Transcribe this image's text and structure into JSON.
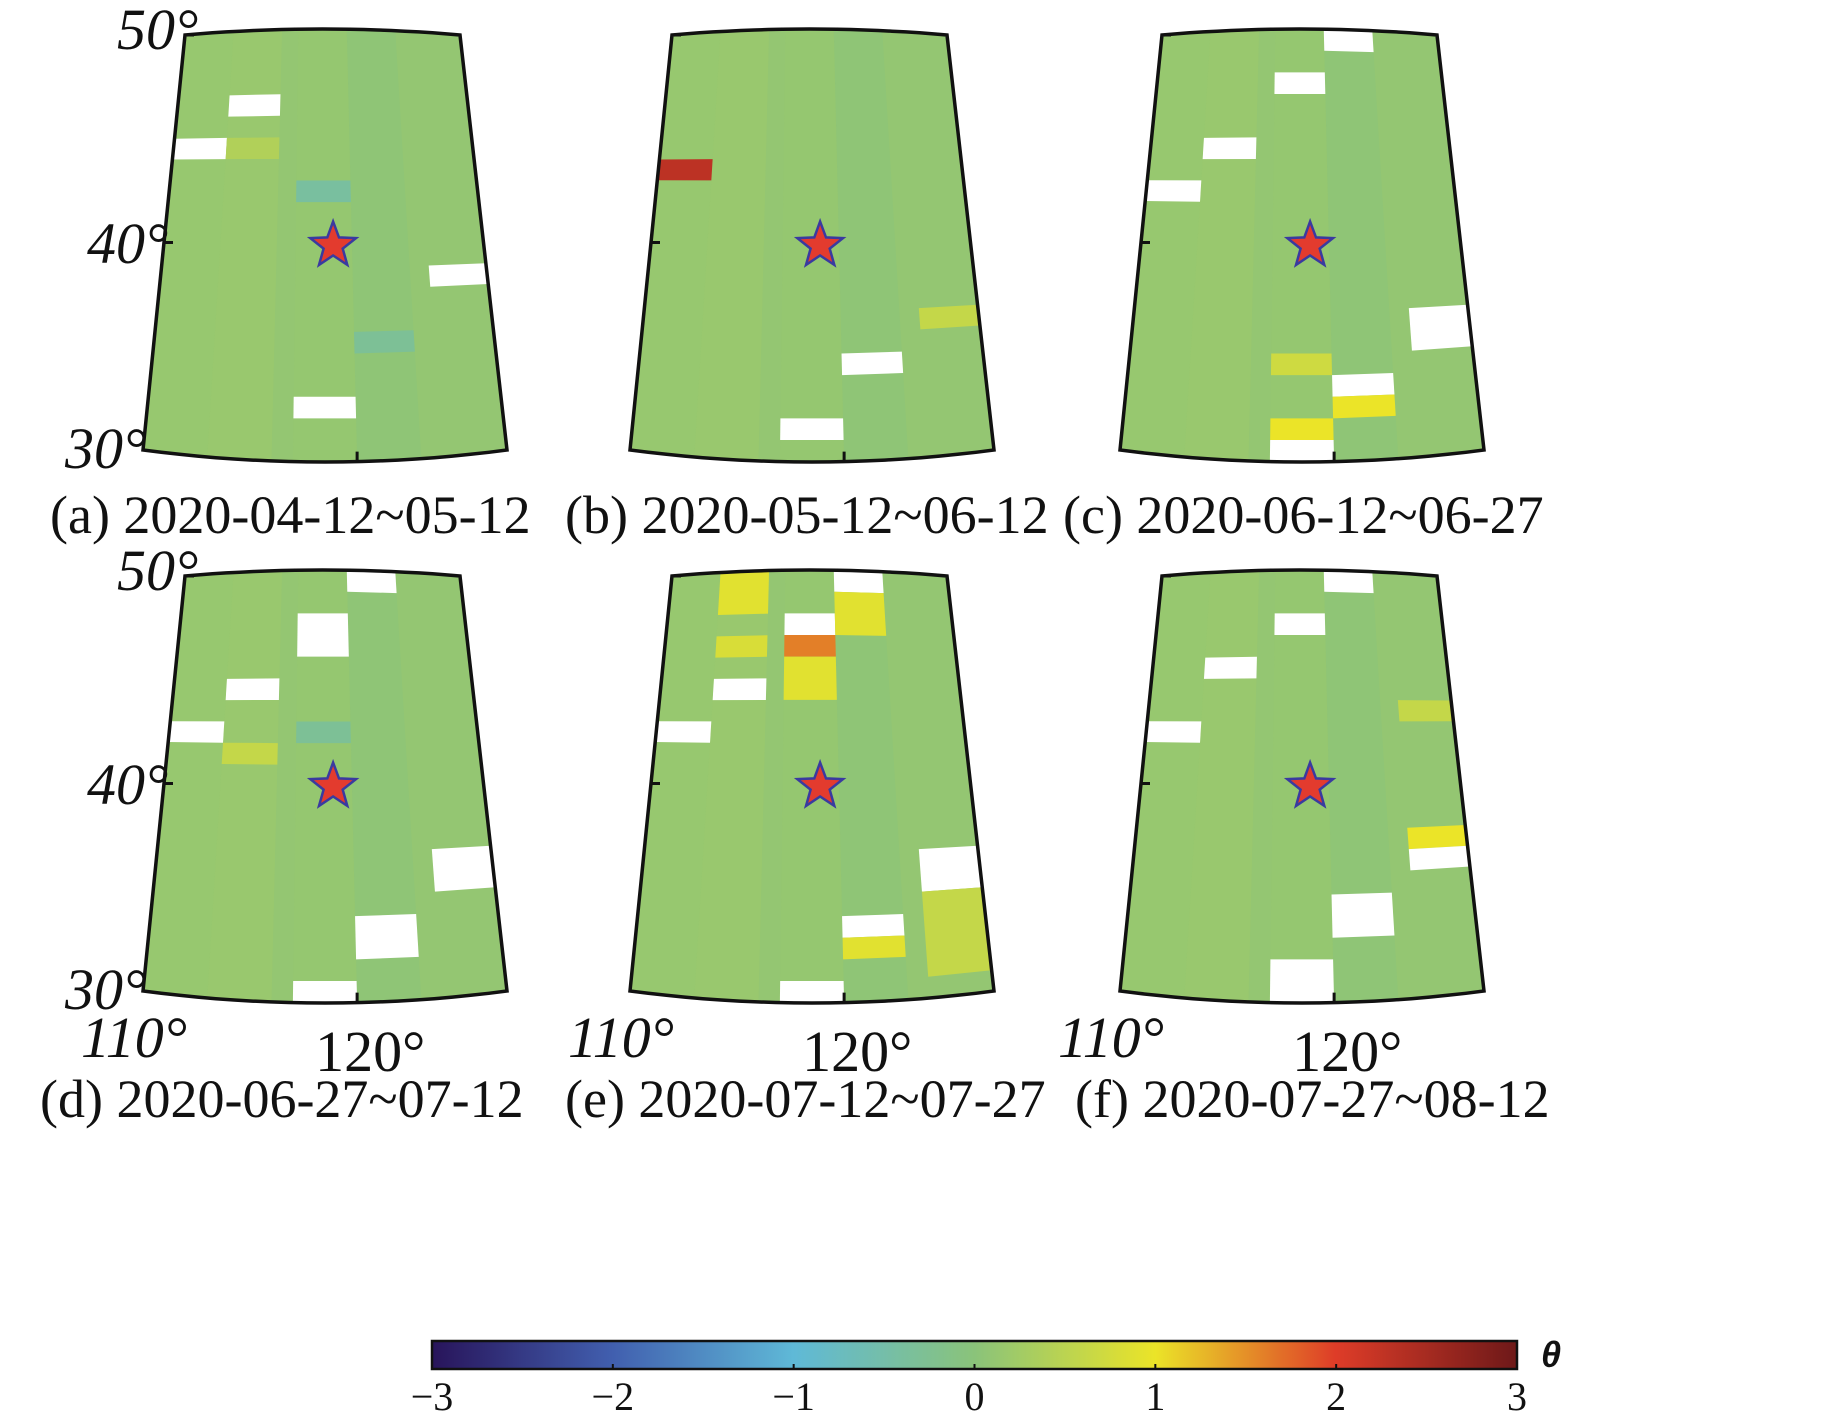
{
  "figure": {
    "panels": [
      {
        "id": "a",
        "caption": "(a) 2020-04-12~05-12"
      },
      {
        "id": "b",
        "caption": "(b) 2020-05-12~06-12"
      },
      {
        "id": "c",
        "caption": "(c) 2020-06-12~06-27"
      },
      {
        "id": "d",
        "caption": "(d) 2020-06-27~07-12"
      },
      {
        "id": "e",
        "caption": "(e) 2020-07-12~07-27"
      },
      {
        "id": "f",
        "caption": "(f) 2020-07-27~08-12"
      }
    ],
    "lat_ticks": [
      "50°",
      "40°",
      "30°"
    ],
    "lon_ticks": [
      "110°",
      "120°"
    ],
    "epicenter": {
      "lon": 119.0,
      "lat": 40.0,
      "marker": "red-star"
    },
    "colorbar": {
      "title": "θ",
      "ticks": [
        "−3",
        "−2",
        "−1",
        "0",
        "1",
        "2",
        "3"
      ],
      "range": [
        -3,
        3
      ]
    }
  },
  "chart_data": {
    "type": "heatmap",
    "variable": "θ",
    "lon_range": [
      110,
      127
    ],
    "lat_range": [
      30,
      50
    ],
    "value_range": [
      -3,
      3
    ],
    "default_value": 0.1,
    "missing": "white cells = no data",
    "panels": [
      {
        "id": "a",
        "cells": [
          {
            "lon": [
              113,
              116
            ],
            "lat": [
              46,
              47
            ],
            "v": null
          },
          {
            "lon": [
              110,
              113
            ],
            "lat": [
              44,
              45
            ],
            "v": null
          },
          {
            "lon": [
              124,
              127
            ],
            "lat": [
              38,
              39
            ],
            "v": null
          },
          {
            "lon": [
              117,
              120
            ],
            "lat": [
              32,
              33
            ],
            "v": null
          },
          {
            "lon": [
              117,
              120
            ],
            "lat": [
              42,
              43
            ],
            "v": -0.4
          },
          {
            "lon": [
              120,
              123
            ],
            "lat": [
              35,
              36
            ],
            "v": -0.3
          },
          {
            "lon": [
              113,
              116
            ],
            "lat": [
              44,
              45
            ],
            "v": 0.4
          }
        ]
      },
      {
        "id": "b",
        "cells": [
          {
            "lon": [
              110,
              113
            ],
            "lat": [
              43,
              44
            ],
            "v": 2.3
          },
          {
            "lon": [
              124,
              127
            ],
            "lat": [
              36,
              37
            ],
            "v": 0.6
          },
          {
            "lon": [
              120,
              123
            ],
            "lat": [
              34,
              35
            ],
            "v": null
          },
          {
            "lon": [
              117,
              120
            ],
            "lat": [
              31,
              32
            ],
            "v": null
          }
        ]
      },
      {
        "id": "c",
        "cells": [
          {
            "lon": [
              120,
              123
            ],
            "lat": [
              49,
              50
            ],
            "v": null
          },
          {
            "lon": [
              117,
              120
            ],
            "lat": [
              47,
              48
            ],
            "v": null
          },
          {
            "lon": [
              113,
              116
            ],
            "lat": [
              44,
              45
            ],
            "v": null
          },
          {
            "lon": [
              110,
              113
            ],
            "lat": [
              42,
              43
            ],
            "v": null
          },
          {
            "lon": [
              124,
              127
            ],
            "lat": [
              35,
              37
            ],
            "v": null
          },
          {
            "lon": [
              120,
              123
            ],
            "lat": [
              33,
              34
            ],
            "v": null
          },
          {
            "lon": [
              120,
              123
            ],
            "lat": [
              32,
              33
            ],
            "v": 1.0
          },
          {
            "lon": [
              117,
              120
            ],
            "lat": [
              31,
              32
            ],
            "v": 1.0
          },
          {
            "lon": [
              117,
              120
            ],
            "lat": [
              30,
              31
            ],
            "v": null
          },
          {
            "lon": [
              117,
              120
            ],
            "lat": [
              34,
              35
            ],
            "v": 0.7
          }
        ]
      },
      {
        "id": "d",
        "cells": [
          {
            "lon": [
              120,
              123
            ],
            "lat": [
              49,
              50
            ],
            "v": null
          },
          {
            "lon": [
              117,
              120
            ],
            "lat": [
              46,
              48
            ],
            "v": null
          },
          {
            "lon": [
              113,
              116
            ],
            "lat": [
              44,
              45
            ],
            "v": null
          },
          {
            "lon": [
              110,
              113
            ],
            "lat": [
              42,
              43
            ],
            "v": null
          },
          {
            "lon": [
              124,
              127
            ],
            "lat": [
              35,
              37
            ],
            "v": null
          },
          {
            "lon": [
              120,
              123
            ],
            "lat": [
              32,
              34
            ],
            "v": null
          },
          {
            "lon": [
              117,
              120
            ],
            "lat": [
              30,
              31
            ],
            "v": null
          },
          {
            "lon": [
              113,
              116
            ],
            "lat": [
              41,
              42
            ],
            "v": 0.6
          },
          {
            "lon": [
              117,
              120
            ],
            "lat": [
              42,
              43
            ],
            "v": -0.3
          }
        ]
      },
      {
        "id": "e",
        "cells": [
          {
            "lon": [
              120,
              123
            ],
            "lat": [
              49,
              50
            ],
            "v": null
          },
          {
            "lon": [
              117,
              120
            ],
            "lat": [
              47,
              48
            ],
            "v": null
          },
          {
            "lon": [
              117,
              120
            ],
            "lat": [
              46,
              47
            ],
            "v": 1.6
          },
          {
            "lon": [
              117,
              120
            ],
            "lat": [
              44,
              46
            ],
            "v": 0.9
          },
          {
            "lon": [
              113,
              116
            ],
            "lat": [
              48,
              50
            ],
            "v": 0.9
          },
          {
            "lon": [
              120,
              123
            ],
            "lat": [
              47,
              49
            ],
            "v": 0.9
          },
          {
            "lon": [
              113,
              116
            ],
            "lat": [
              46,
              47
            ],
            "v": 0.8
          },
          {
            "lon": [
              113,
              116
            ],
            "lat": [
              44,
              45
            ],
            "v": null
          },
          {
            "lon": [
              110,
              113
            ],
            "lat": [
              42,
              43
            ],
            "v": null
          },
          {
            "lon": [
              124,
              127
            ],
            "lat": [
              35,
              37
            ],
            "v": null
          },
          {
            "lon": [
              124,
              127
            ],
            "lat": [
              31,
              35
            ],
            "v": 0.6
          },
          {
            "lon": [
              120,
              123
            ],
            "lat": [
              33,
              34
            ],
            "v": null
          },
          {
            "lon": [
              120,
              123
            ],
            "lat": [
              32,
              33
            ],
            "v": 0.9
          },
          {
            "lon": [
              117,
              120
            ],
            "lat": [
              30,
              31
            ],
            "v": null
          }
        ]
      },
      {
        "id": "f",
        "cells": [
          {
            "lon": [
              120,
              123
            ],
            "lat": [
              49,
              50
            ],
            "v": null
          },
          {
            "lon": [
              117,
              120
            ],
            "lat": [
              47,
              48
            ],
            "v": null
          },
          {
            "lon": [
              113,
              116
            ],
            "lat": [
              45,
              46
            ],
            "v": null
          },
          {
            "lon": [
              110,
              113
            ],
            "lat": [
              42,
              43
            ],
            "v": null
          },
          {
            "lon": [
              124,
              127
            ],
            "lat": [
              37,
              38
            ],
            "v": 1.0
          },
          {
            "lon": [
              124,
              127
            ],
            "lat": [
              36,
              37
            ],
            "v": null
          },
          {
            "lon": [
              120,
              123
            ],
            "lat": [
              33,
              35
            ],
            "v": null
          },
          {
            "lon": [
              117,
              120
            ],
            "lat": [
              30,
              32
            ],
            "v": null
          },
          {
            "lon": [
              124,
              127
            ],
            "lat": [
              43,
              44
            ],
            "v": 0.6
          }
        ]
      }
    ]
  }
}
